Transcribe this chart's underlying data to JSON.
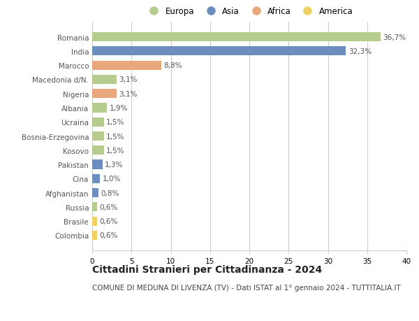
{
  "countries": [
    "Romania",
    "India",
    "Marocco",
    "Macedonia d/N.",
    "Nigeria",
    "Albania",
    "Ucraina",
    "Bosnia-Erzegovina",
    "Kosovo",
    "Pakistan",
    "Cina",
    "Afghanistan",
    "Russia",
    "Brasile",
    "Colombia"
  ],
  "values": [
    36.7,
    32.3,
    8.8,
    3.1,
    3.1,
    1.9,
    1.5,
    1.5,
    1.5,
    1.3,
    1.0,
    0.8,
    0.6,
    0.6,
    0.6
  ],
  "labels": [
    "36,7%",
    "32,3%",
    "8,8%",
    "3,1%",
    "3,1%",
    "1,9%",
    "1,5%",
    "1,5%",
    "1,5%",
    "1,3%",
    "1,0%",
    "0,8%",
    "0,6%",
    "0,6%",
    "0,6%"
  ],
  "continents": [
    "Europa",
    "Asia",
    "Africa",
    "Europa",
    "Africa",
    "Europa",
    "Europa",
    "Europa",
    "Europa",
    "Asia",
    "Asia",
    "Asia",
    "Europa",
    "America",
    "America"
  ],
  "colors": {
    "Europa": "#b5cc8e",
    "Asia": "#6c8ebf",
    "Africa": "#e8a87c",
    "America": "#f0d060"
  },
  "xlim": [
    0,
    40
  ],
  "xticks": [
    0,
    5,
    10,
    15,
    20,
    25,
    30,
    35,
    40
  ],
  "title": "Cittadini Stranieri per Cittadinanza - 2024",
  "subtitle": "COMUNE DI MEDUNA DI LIVENZA (TV) - Dati ISTAT al 1° gennaio 2024 - TUTTITALIA.IT",
  "background_color": "#ffffff",
  "grid_color": "#cccccc",
  "bar_height": 0.65,
  "text_color": "#555555",
  "title_fontsize": 10,
  "subtitle_fontsize": 7.5,
  "tick_fontsize": 7.5,
  "label_fontsize": 7.5,
  "legend_fontsize": 8.5
}
